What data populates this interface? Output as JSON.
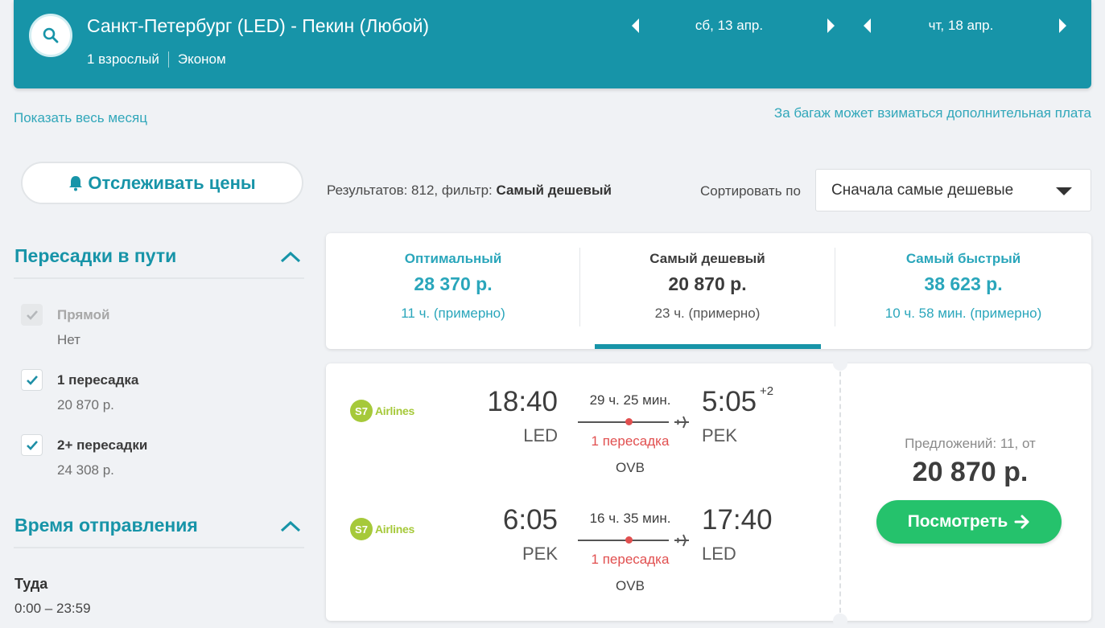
{
  "header": {
    "route": "Санкт-Петербург (LED) - Пекин (Любой)",
    "passengers": "1 взрослый",
    "cabin_class": "Эконом",
    "depart_date": "сб, 13 апр.",
    "return_date": "чт, 18 апр."
  },
  "links": {
    "show_month": "Показать весь месяц",
    "baggage_note": "За багаж может взиматься дополнительная плата"
  },
  "track_button": {
    "label": "Отслеживать цены"
  },
  "filters": {
    "stops": {
      "title": "Пересадки в пути",
      "options": [
        {
          "label": "Прямой",
          "sub": "Нет",
          "checked": true,
          "disabled": true
        },
        {
          "label": "1 пересадка",
          "sub": "20 870 р.",
          "checked": true,
          "disabled": false
        },
        {
          "label": "2+ пересадки",
          "sub": "24 308 р.",
          "checked": true,
          "disabled": false
        }
      ]
    },
    "departure_time": {
      "title": "Время отправления",
      "direction": "Туда",
      "range": "0:00 – 23:59"
    }
  },
  "results": {
    "prefix": "Результатов: 812, фильтр: ",
    "filter": "Самый дешевый"
  },
  "sort": {
    "label": "Сортировать по",
    "selected": "Сначала самые дешевые"
  },
  "tabs": [
    {
      "title": "Оптимальный",
      "price": "28 370 р.",
      "duration": "11 ч. (примерно)",
      "active": false
    },
    {
      "title": "Самый дешевый",
      "price": "20 870 р.",
      "duration": "23 ч. (примерно)",
      "active": true
    },
    {
      "title": "Самый быстрый",
      "price": "38 623 р.",
      "duration": "10 ч. 58 мин. (примерно)",
      "active": false
    }
  ],
  "ticket": {
    "legs": [
      {
        "airline_logo": "S7",
        "airline_name": "Airlines",
        "dep_time": "18:40",
        "dep_airport": "LED",
        "duration": "29 ч. 25 мин.",
        "stops": "1 пересадка",
        "via": "OVB",
        "arr_time": "5:05",
        "arr_day_offset": "+2",
        "arr_airport": "PEK"
      },
      {
        "airline_logo": "S7",
        "airline_name": "Airlines",
        "dep_time": "6:05",
        "dep_airport": "PEK",
        "duration": "16 ч. 35 мин.",
        "stops": "1 пересадка",
        "via": "OVB",
        "arr_time": "17:40",
        "arr_day_offset": "",
        "arr_airport": "LED"
      }
    ],
    "offers": "Предложений: 11, от",
    "price": "20 870 р.",
    "view_button": "Посмотреть"
  },
  "colors": {
    "header_bg": "#1794a8",
    "accent_teal": "#2aa6bb",
    "stops_red": "#e14f4f",
    "cta_green": "#25c26c",
    "airline_green": "#a6c93a"
  },
  "icons": [
    "search-icon",
    "bell-icon",
    "chevron-up-icon",
    "check-icon",
    "triangle-left-icon",
    "triangle-right-icon",
    "caret-down-icon",
    "plane-icon",
    "arrow-right-icon"
  ]
}
